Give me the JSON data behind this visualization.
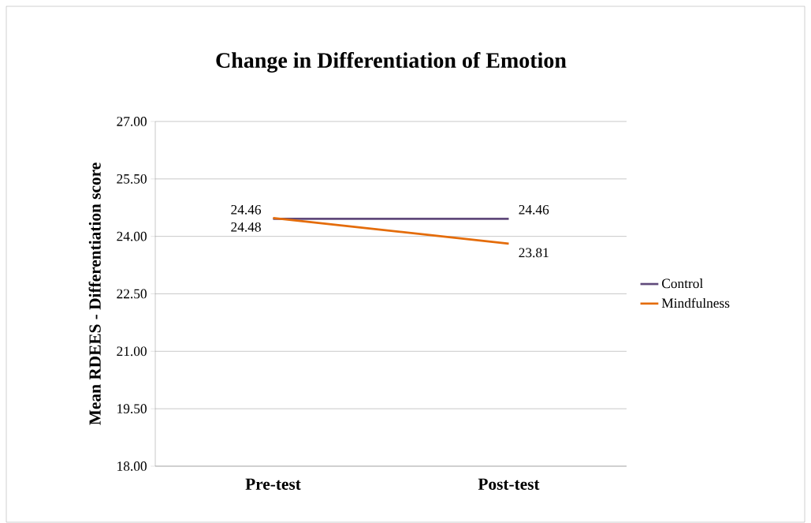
{
  "chart_data": {
    "type": "line",
    "title": "Change in Differentiation of Emotion",
    "ylabel": "Mean RDEES - Differentiation score",
    "categories": [
      "Pre-test",
      "Post-test"
    ],
    "series": [
      {
        "name": "Control",
        "color": "#604a7b",
        "values": [
          24.46,
          24.46
        ]
      },
      {
        "name": "Mindfulness",
        "color": "#e46c0a",
        "values": [
          24.48,
          23.81
        ]
      }
    ],
    "ylim": [
      18,
      27
    ],
    "yticks": [
      {
        "value": 18,
        "label": "18.00"
      },
      {
        "value": 19.5,
        "label": "19.50"
      },
      {
        "value": 21,
        "label": "21.00"
      },
      {
        "value": 22.5,
        "label": "22.50"
      },
      {
        "value": 24,
        "label": "24.00"
      },
      {
        "value": 25.5,
        "label": "25.50"
      },
      {
        "value": 27,
        "label": "27.00"
      }
    ],
    "grid": "y",
    "legend": "right",
    "data_labels": true,
    "marker": "none",
    "line_style": "solid"
  }
}
